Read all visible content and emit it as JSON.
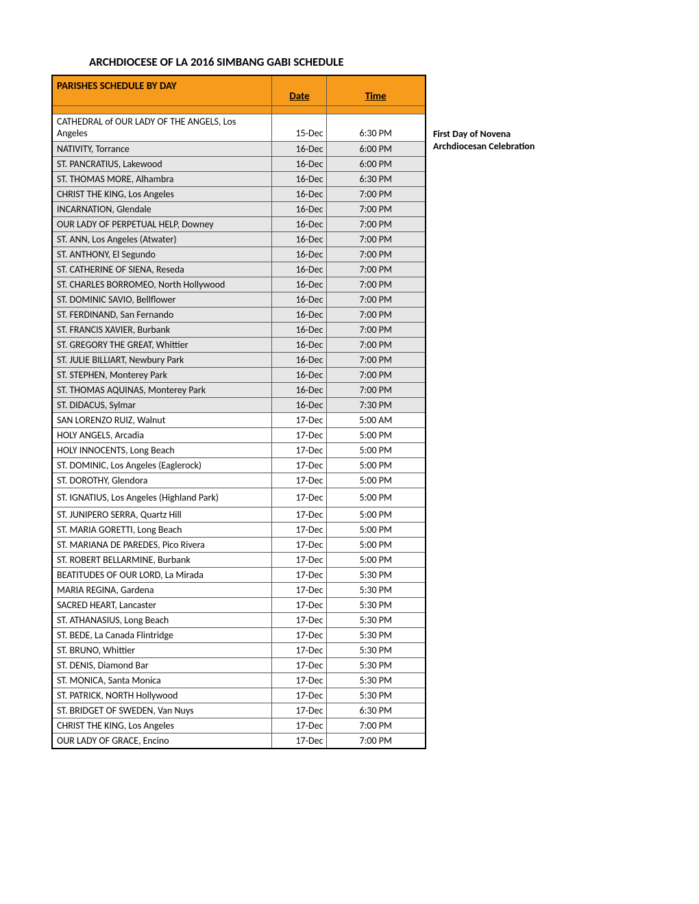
{
  "title": "ARCHDIOCESE OF LA 2016 SIMBANG GABI SCHEDULE",
  "header": {
    "parish": "PARISHES SCHEDULE BY DAY",
    "date": "Date",
    "time": "Time"
  },
  "sideNote": {
    "line1": "First Day of Novena",
    "line2": "Archdiocesan Celebration"
  },
  "colors": {
    "headerBg": "#f79b1c",
    "shadedBg": "#e6e6e6",
    "border": "#000000"
  },
  "rows": [
    {
      "parish": "CATHEDRAL of OUR LADY OF THE ANGELS, Los Angeles",
      "date": "15-Dec",
      "time": "6:30 PM",
      "shaded": false,
      "tall": true
    },
    {
      "parish": "NATIVITY, Torrance",
      "date": "16-Dec",
      "time": "6:00 PM",
      "shaded": true
    },
    {
      "parish": "ST. PANCRATIUS, Lakewood",
      "date": "16-Dec",
      "time": "6:00 PM",
      "shaded": true
    },
    {
      "parish": "ST. THOMAS MORE, Alhambra",
      "date": "16-Dec",
      "time": "6:30 PM",
      "shaded": true
    },
    {
      "parish": "CHRIST THE KING, Los Angeles",
      "date": "16-Dec",
      "time": "7:00 PM",
      "shaded": true
    },
    {
      "parish": "INCARNATION, Glendale",
      "date": "16-Dec",
      "time": "7:00 PM",
      "shaded": true
    },
    {
      "parish": "OUR LADY OF PERPETUAL HELP, Downey",
      "date": "16-Dec",
      "time": "7:00 PM",
      "shaded": true
    },
    {
      "parish": "ST. ANN, Los Angeles (Atwater)",
      "date": "16-Dec",
      "time": "7:00 PM",
      "shaded": true
    },
    {
      "parish": "ST. ANTHONY, El Segundo",
      "date": "16-Dec",
      "time": "7:00 PM",
      "shaded": true
    },
    {
      "parish": "ST. CATHERINE OF SIENA, Reseda",
      "date": "16-Dec",
      "time": "7:00 PM",
      "shaded": true
    },
    {
      "parish": "ST. CHARLES BORROMEO, North Hollywood",
      "date": "16-Dec",
      "time": "7:00 PM",
      "shaded": true
    },
    {
      "parish": "ST. DOMINIC SAVIO, Bellflower",
      "date": "16-Dec",
      "time": "7:00 PM",
      "shaded": true
    },
    {
      "parish": "ST. FERDINAND, San Fernando",
      "date": "16-Dec",
      "time": "7:00 PM",
      "shaded": true
    },
    {
      "parish": "ST. FRANCIS XAVIER, Burbank",
      "date": "16-Dec",
      "time": "7:00 PM",
      "shaded": true
    },
    {
      "parish": "ST. GREGORY THE GREAT, Whittier",
      "date": "16-Dec",
      "time": "7:00 PM",
      "shaded": true
    },
    {
      "parish": "ST. JULIE BILLIART, Newbury Park",
      "date": "16-Dec",
      "time": "7:00 PM",
      "shaded": true
    },
    {
      "parish": "ST. STEPHEN, Monterey Park",
      "date": "16-Dec",
      "time": "7:00 PM",
      "shaded": true
    },
    {
      "parish": "ST. THOMAS AQUINAS, Monterey Park",
      "date": "16-Dec",
      "time": "7:00 PM",
      "shaded": true
    },
    {
      "parish": "ST. DIDACUS, Sylmar",
      "date": "16-Dec",
      "time": "7:30 PM",
      "shaded": true
    },
    {
      "parish": "SAN LORENZO RUIZ, Walnut",
      "date": "17-Dec",
      "time": "5:00 AM",
      "shaded": false
    },
    {
      "parish": "HOLY ANGELS, Arcadia",
      "date": "17-Dec",
      "time": "5:00 PM",
      "shaded": false
    },
    {
      "parish": "HOLY INNOCENTS, Long Beach",
      "date": "17-Dec",
      "time": "5:00 PM",
      "shaded": false
    },
    {
      "parish": "ST. DOMINIC, Los Angeles (Eaglerock)",
      "date": "17-Dec",
      "time": "5:00 PM",
      "shaded": false
    },
    {
      "parish": "ST. DOROTHY, Glendora",
      "date": "17-Dec",
      "time": "5:00 PM",
      "shaded": false
    },
    {
      "parish": "ST. IGNATIUS, Los Angeles (Highland Park)",
      "date": "17-Dec",
      "time": "5:00 PM",
      "shaded": false,
      "tall2": true
    },
    {
      "parish": "ST. JUNIPERO SERRA, Quartz Hill",
      "date": "17-Dec",
      "time": "5:00 PM",
      "shaded": false
    },
    {
      "parish": "ST. MARIA GORETTI, Long Beach",
      "date": "17-Dec",
      "time": "5:00 PM",
      "shaded": false
    },
    {
      "parish": "ST. MARIANA DE PAREDES, Pico Rivera",
      "date": "17-Dec",
      "time": "5:00 PM",
      "shaded": false
    },
    {
      "parish": "ST. ROBERT BELLARMINE, Burbank",
      "date": "17-Dec",
      "time": "5:00 PM",
      "shaded": false
    },
    {
      "parish": "BEATITUDES OF OUR LORD, La Mirada",
      "date": "17-Dec",
      "time": "5:30 PM",
      "shaded": false
    },
    {
      "parish": "MARIA REGINA, Gardena",
      "date": "17-Dec",
      "time": "5:30 PM",
      "shaded": false
    },
    {
      "parish": "SACRED HEART, Lancaster",
      "date": "17-Dec",
      "time": "5:30 PM",
      "shaded": false
    },
    {
      "parish": "ST. ATHANASIUS, Long Beach",
      "date": "17-Dec",
      "time": "5:30 PM",
      "shaded": false
    },
    {
      "parish": "ST. BEDE, La Canada Flintridge",
      "date": "17-Dec",
      "time": "5:30 PM",
      "shaded": false
    },
    {
      "parish": "ST. BRUNO, Whittier",
      "date": "17-Dec",
      "time": "5:30 PM",
      "shaded": false
    },
    {
      "parish": "ST. DENIS, Diamond Bar",
      "date": "17-Dec",
      "time": "5:30 PM",
      "shaded": false
    },
    {
      "parish": "ST. MONICA, Santa Monica",
      "date": "17-Dec",
      "time": "5:30 PM",
      "shaded": false
    },
    {
      "parish": "ST. PATRICK, NORTH Hollywood",
      "date": "17-Dec",
      "time": "5:30 PM",
      "shaded": false
    },
    {
      "parish": "ST. BRIDGET OF SWEDEN, Van Nuys",
      "date": "17-Dec",
      "time": "6:30 PM",
      "shaded": false
    },
    {
      "parish": "CHRIST THE KING, Los Angeles",
      "date": "17-Dec",
      "time": "7:00 PM",
      "shaded": false
    },
    {
      "parish": "OUR LADY OF GRACE, Encino",
      "date": "17-Dec",
      "time": "7:00 PM",
      "shaded": false
    }
  ]
}
